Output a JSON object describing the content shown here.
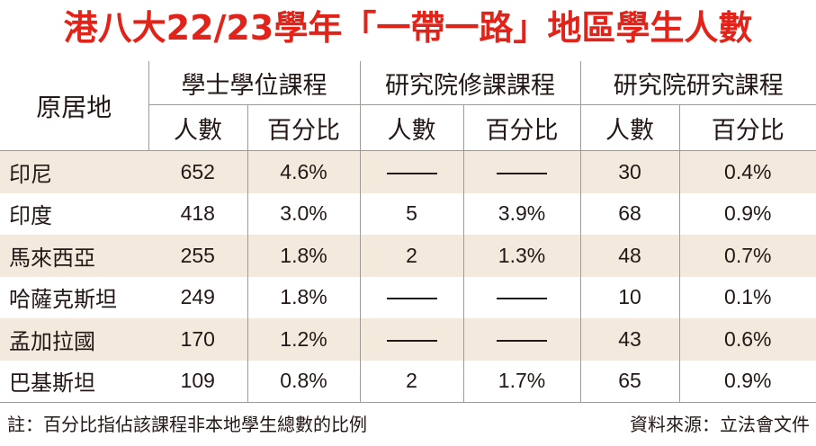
{
  "title": "港八大22/23學年「一帶一路」地區學生人數",
  "headers": {
    "origin": "原居地",
    "groups": [
      "學士學位課程",
      "研究院修課課程",
      "研究院研究課程"
    ],
    "sub": [
      "人數",
      "百分比"
    ]
  },
  "rows": [
    {
      "origin": "印尼",
      "values": [
        "652",
        "4.6%",
        null,
        null,
        "30",
        "0.4%"
      ]
    },
    {
      "origin": "印度",
      "values": [
        "418",
        "3.0%",
        "5",
        "3.9%",
        "68",
        "0.9%"
      ]
    },
    {
      "origin": "馬來西亞",
      "values": [
        "255",
        "1.8%",
        "2",
        "1.3%",
        "48",
        "0.7%"
      ]
    },
    {
      "origin": "哈薩克斯坦",
      "values": [
        "249",
        "1.8%",
        null,
        null,
        "10",
        "0.1%"
      ]
    },
    {
      "origin": "孟加拉國",
      "values": [
        "170",
        "1.2%",
        null,
        null,
        "43",
        "0.6%"
      ]
    },
    {
      "origin": "巴基斯坦",
      "values": [
        "109",
        "0.8%",
        "2",
        "1.7%",
        "65",
        "0.9%"
      ]
    }
  ],
  "footer": {
    "note": "註：百分比指佔該課程非本地學生總數的比例",
    "source": "資料來源：立法會文件"
  },
  "colors": {
    "title": "#e2231a",
    "row_shade": "#f3e9dc",
    "rule": "#9e9a98"
  },
  "chart_data": {
    "type": "table",
    "title": "港八大22/23學年「一帶一路」地區學生人數",
    "columns": [
      "原居地",
      "學士學位課程 人數",
      "學士學位課程 百分比",
      "研究院修課課程 人數",
      "研究院修課課程 百分比",
      "研究院研究課程 人數",
      "研究院研究課程 百分比"
    ],
    "categories": [
      "印尼",
      "印度",
      "馬來西亞",
      "哈薩克斯坦",
      "孟加拉國",
      "巴基斯坦"
    ],
    "series": [
      {
        "name": "學士學位課程 人數",
        "values": [
          652,
          418,
          255,
          249,
          170,
          109
        ]
      },
      {
        "name": "學士學位課程 百分比",
        "values": [
          4.6,
          3.0,
          1.8,
          1.8,
          1.2,
          0.8
        ]
      },
      {
        "name": "研究院修課課程 人數",
        "values": [
          null,
          5,
          2,
          null,
          null,
          2
        ]
      },
      {
        "name": "研究院修課課程 百分比",
        "values": [
          null,
          3.9,
          1.3,
          null,
          null,
          1.7
        ]
      },
      {
        "name": "研究院研究課程 人數",
        "values": [
          30,
          68,
          48,
          10,
          43,
          65
        ]
      },
      {
        "name": "研究院研究課程 百分比",
        "values": [
          0.4,
          0.9,
          0.7,
          0.1,
          0.6,
          0.9
        ]
      }
    ]
  }
}
